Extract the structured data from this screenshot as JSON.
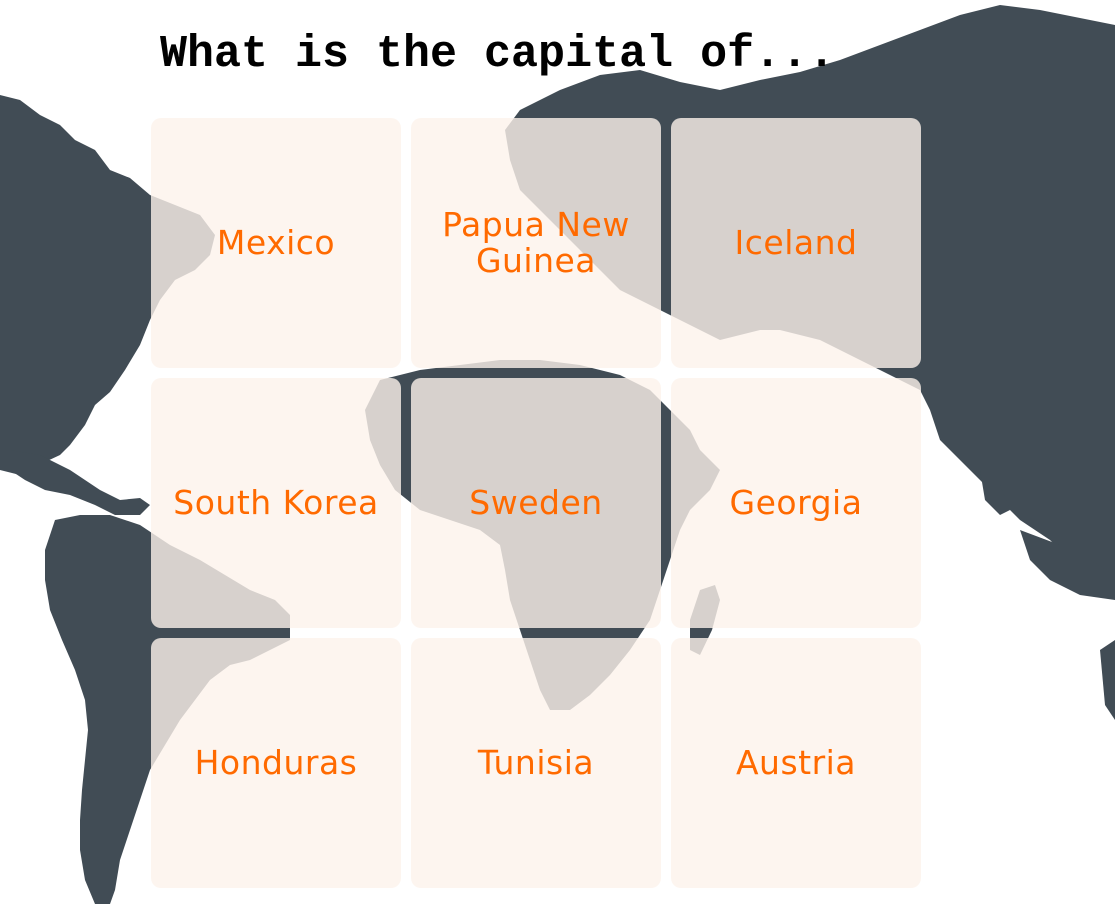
{
  "quiz": {
    "title": "What is the capital of..."
  },
  "options": [
    {
      "label": "Mexico"
    },
    {
      "label": "Papua New Guinea"
    },
    {
      "label": "Iceland"
    },
    {
      "label": "South Korea"
    },
    {
      "label": "Sweden"
    },
    {
      "label": "Georgia"
    },
    {
      "label": "Honduras"
    },
    {
      "label": "Tunisia"
    },
    {
      "label": "Austria"
    }
  ],
  "colors": {
    "map": "#414c55",
    "tile": "#fdf2eb",
    "label": "#ff6a00",
    "title": "#000000"
  }
}
